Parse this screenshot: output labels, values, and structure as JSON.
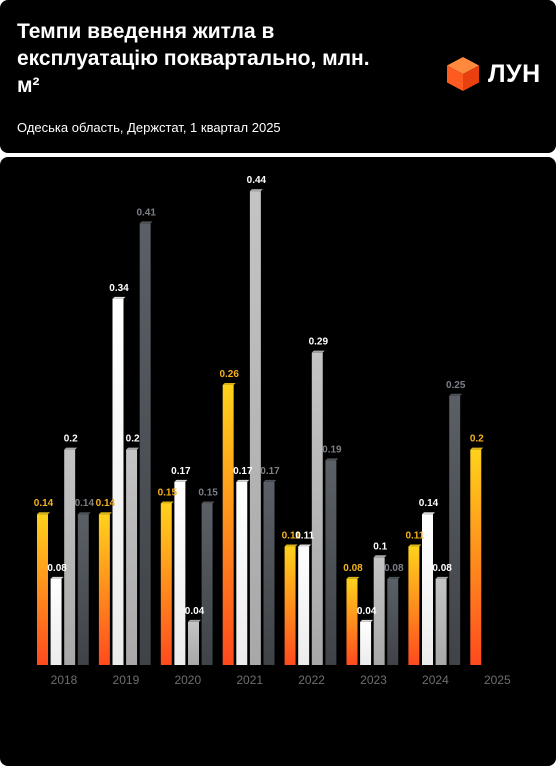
{
  "header": {
    "title": "Темпи введення житла в експлуатацію поквартально, млн. м²",
    "subtitle": "Одеська область, Держстат, 1 квартал 2025",
    "logo_text": "ЛУН",
    "logo_icon": "orange-cube-icon"
  },
  "chart_data": {
    "type": "bar",
    "title": "Темпи введення житла в експлуатацію поквартально, млн. м²",
    "subtitle": "Одеська область, Держстат, 1 квартал 2025",
    "categories": [
      "2018",
      "2019",
      "2020",
      "2021",
      "2022",
      "2023",
      "2024",
      "2025"
    ],
    "series": [
      {
        "quarter": 1,
        "values": [
          0.14,
          0.14,
          0.15,
          0.26,
          0.11,
          0.08,
          0.11,
          0.2
        ],
        "labels": [
          "0.14",
          "0.14",
          "0.15",
          "0.26",
          "0.11",
          "0.08",
          "0.11",
          "0.2"
        ],
        "color_top": "#ffd21c",
        "color_bottom": "#ff4a1e",
        "label_color": "#f7b21a"
      },
      {
        "quarter": 2,
        "values": [
          0.08,
          0.34,
          0.17,
          0.17,
          0.11,
          0.04,
          0.14,
          null
        ],
        "labels": [
          "0.08",
          "0.34",
          "0.17",
          "0.17",
          "0.11",
          "0.04",
          "0.14",
          ""
        ],
        "color_top": "#ffffff",
        "color_bottom": "#ececec",
        "label_color": "#ffffff"
      },
      {
        "quarter": 3,
        "values": [
          0.2,
          0.2,
          0.04,
          0.44,
          0.29,
          0.1,
          0.08,
          null
        ],
        "labels": [
          "0.2",
          "0.2",
          "0.04",
          "0.44",
          "0.29",
          "0.1",
          "0.08",
          ""
        ],
        "color_top": "#c4c4c4",
        "color_bottom": "#a8a8a8",
        "label_color": "#ffffff"
      },
      {
        "quarter": 4,
        "values": [
          0.14,
          0.41,
          0.15,
          0.17,
          0.19,
          0.08,
          0.25,
          null
        ],
        "labels": [
          "0.14",
          "0.41",
          "0.15",
          "0.17",
          "0.19",
          "0.08",
          "0.25",
          ""
        ],
        "color_top": "#5b6066",
        "color_bottom": "#3f4348",
        "label_color": "#7c8086"
      }
    ],
    "ylim": [
      0,
      0.44
    ],
    "grid": false,
    "legend": "none",
    "tick_color": "#6e6e6e"
  }
}
